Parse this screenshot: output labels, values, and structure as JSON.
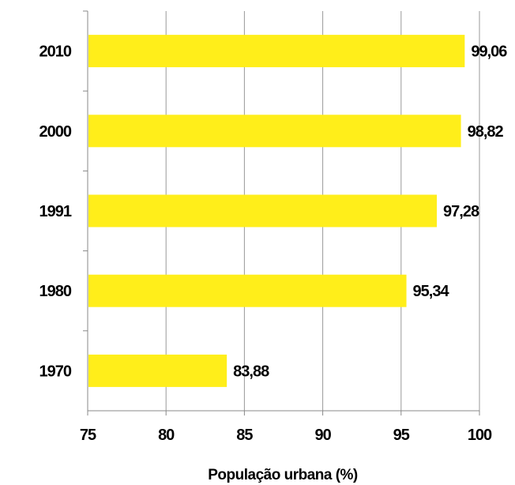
{
  "chart_data": {
    "type": "bar",
    "orientation": "horizontal",
    "categories": [
      "2010",
      "2000",
      "1991",
      "1980",
      "1970"
    ],
    "values": [
      99.06,
      98.82,
      97.28,
      95.34,
      83.88
    ],
    "value_labels": [
      "99,06",
      "98,82",
      "97,28",
      "95,34",
      "83,88"
    ],
    "xlabel": "População urbana (%)",
    "ylabel": "",
    "xlim": [
      75,
      100
    ],
    "xticks": [
      "75",
      "80",
      "85",
      "90",
      "95",
      "100"
    ],
    "grid": "vertical",
    "legend": "none",
    "bar_color": "#FFEE1A",
    "grid_color": "#999999"
  }
}
